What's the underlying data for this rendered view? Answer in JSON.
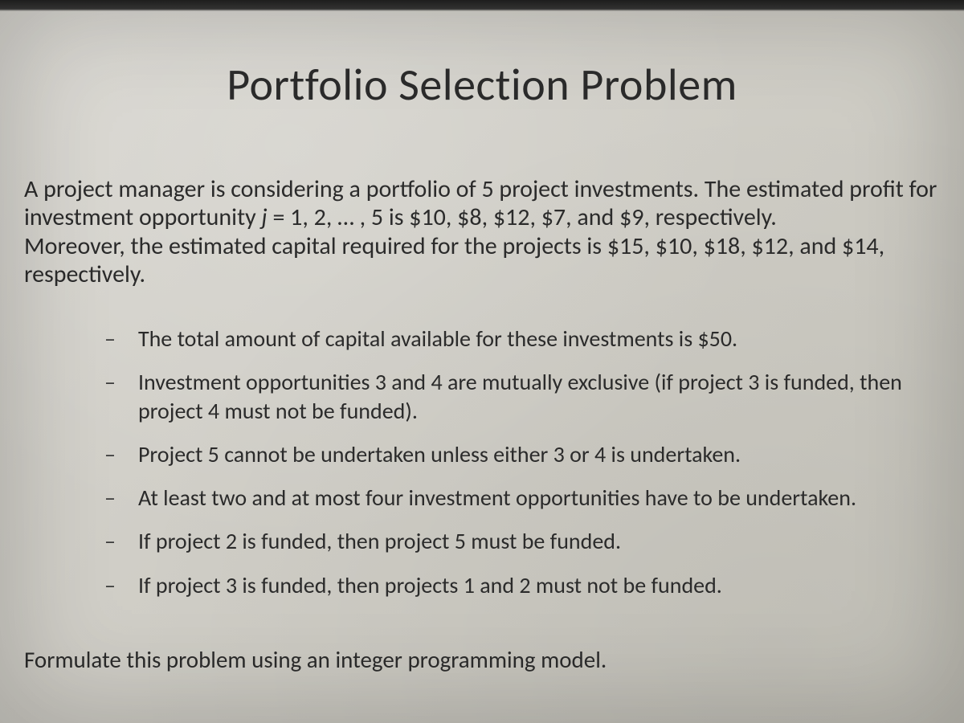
{
  "colors": {
    "background_top": "#d8d6d0",
    "background_mid": "#d0cec7",
    "background_bottom": "#c8c6bd",
    "text_primary": "#2b2b2b",
    "dash_color": "#3a3a3a",
    "top_bar": "#0c0c0c"
  },
  "typography": {
    "title_fontsize": 56,
    "intro_fontsize": 30,
    "bullet_fontsize": 28,
    "closing_fontsize": 29,
    "font_family": "Calibri"
  },
  "title": "Portfolio Selection Problem",
  "intro": {
    "line1_pre": "A project manager is considering a portfolio of 5 project investments. The estimated profit for investment opportunity ",
    "j_var": "j",
    "eq": " = 1, 2, … , 5 is $10, $8, $12, $7, and $9, respectively.",
    "line2": "Moreover, the estimated capital required for the projects is $15, $10, $18, $12, and $14, respectively."
  },
  "bullets": [
    "The total amount of capital available for these investments is $50.",
    "Investment opportunities 3 and 4 are mutually exclusive (if project 3 is funded, then project 4 must not be funded).",
    "Project 5 cannot be undertaken unless either 3 or 4 is undertaken.",
    "At least two and at most four investment opportunities have to be undertaken.",
    "If project 2 is funded, then project 5 must be funded.",
    "If project 3 is funded, then projects 1 and 2 must not be funded."
  ],
  "dash_glyph": "–",
  "closing": "Formulate this problem using an integer programming model."
}
